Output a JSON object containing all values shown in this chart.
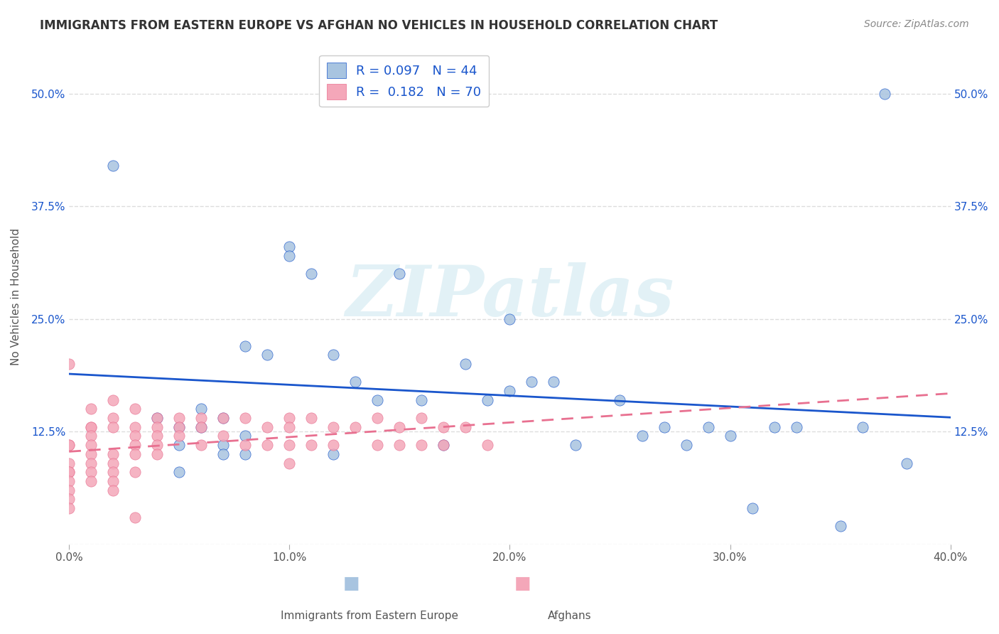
{
  "title": "IMMIGRANTS FROM EASTERN EUROPE VS AFGHAN NO VEHICLES IN HOUSEHOLD CORRELATION CHART",
  "source": "Source: ZipAtlas.com",
  "xlabel_bottom": "",
  "ylabel": "No Vehicles in Household",
  "legend_label1": "Immigrants from Eastern Europe",
  "legend_label2": "Afghans",
  "R1": 0.097,
  "N1": 44,
  "R2": 0.182,
  "N2": 70,
  "xlim": [
    0.0,
    0.4
  ],
  "ylim": [
    0.0,
    0.55
  ],
  "xticks": [
    0.0,
    0.1,
    0.2,
    0.3,
    0.4
  ],
  "yticks": [
    0.0,
    0.125,
    0.25,
    0.375,
    0.5
  ],
  "xticklabels": [
    "0.0%",
    "10.0%",
    "20.0%",
    "30.0%",
    "40.0%"
  ],
  "yticklabels": [
    "",
    "12.5%",
    "25.0%",
    "37.5%",
    "50.0%"
  ],
  "color_blue": "#a8c4e0",
  "color_pink": "#f4a7b9",
  "line_blue": "#1a56cc",
  "line_pink": "#e87090",
  "watermark": "ZIPatlas",
  "blue_x": [
    0.02,
    0.04,
    0.05,
    0.05,
    0.05,
    0.06,
    0.06,
    0.07,
    0.07,
    0.07,
    0.08,
    0.08,
    0.08,
    0.09,
    0.1,
    0.1,
    0.11,
    0.12,
    0.12,
    0.13,
    0.14,
    0.15,
    0.16,
    0.17,
    0.18,
    0.19,
    0.2,
    0.2,
    0.21,
    0.22,
    0.23,
    0.25,
    0.26,
    0.27,
    0.28,
    0.29,
    0.3,
    0.31,
    0.32,
    0.33,
    0.35,
    0.36,
    0.37,
    0.38
  ],
  "blue_y": [
    0.42,
    0.14,
    0.13,
    0.11,
    0.08,
    0.15,
    0.13,
    0.14,
    0.11,
    0.1,
    0.22,
    0.12,
    0.1,
    0.21,
    0.33,
    0.32,
    0.3,
    0.1,
    0.21,
    0.18,
    0.16,
    0.3,
    0.16,
    0.11,
    0.2,
    0.16,
    0.17,
    0.25,
    0.18,
    0.18,
    0.11,
    0.16,
    0.12,
    0.13,
    0.11,
    0.13,
    0.12,
    0.04,
    0.13,
    0.13,
    0.02,
    0.13,
    0.5,
    0.09
  ],
  "pink_x": [
    0.0,
    0.0,
    0.0,
    0.0,
    0.0,
    0.0,
    0.0,
    0.0,
    0.0,
    0.0,
    0.01,
    0.01,
    0.01,
    0.01,
    0.01,
    0.01,
    0.01,
    0.01,
    0.01,
    0.02,
    0.02,
    0.02,
    0.02,
    0.02,
    0.02,
    0.02,
    0.02,
    0.03,
    0.03,
    0.03,
    0.03,
    0.03,
    0.03,
    0.03,
    0.04,
    0.04,
    0.04,
    0.04,
    0.04,
    0.05,
    0.05,
    0.05,
    0.06,
    0.06,
    0.06,
    0.07,
    0.07,
    0.08,
    0.08,
    0.09,
    0.09,
    0.1,
    0.1,
    0.1,
    0.1,
    0.11,
    0.11,
    0.12,
    0.12,
    0.13,
    0.14,
    0.14,
    0.15,
    0.15,
    0.16,
    0.16,
    0.17,
    0.17,
    0.18,
    0.19
  ],
  "pink_y": [
    0.2,
    0.11,
    0.11,
    0.09,
    0.08,
    0.08,
    0.07,
    0.06,
    0.05,
    0.04,
    0.15,
    0.13,
    0.13,
    0.12,
    0.11,
    0.1,
    0.09,
    0.08,
    0.07,
    0.16,
    0.14,
    0.13,
    0.1,
    0.09,
    0.08,
    0.07,
    0.06,
    0.15,
    0.13,
    0.12,
    0.11,
    0.1,
    0.08,
    0.03,
    0.14,
    0.13,
    0.12,
    0.11,
    0.1,
    0.14,
    0.13,
    0.12,
    0.14,
    0.13,
    0.11,
    0.14,
    0.12,
    0.14,
    0.11,
    0.13,
    0.11,
    0.14,
    0.13,
    0.11,
    0.09,
    0.14,
    0.11,
    0.13,
    0.11,
    0.13,
    0.14,
    0.11,
    0.13,
    0.11,
    0.14,
    0.11,
    0.13,
    0.11,
    0.13,
    0.11
  ],
  "background_color": "#ffffff",
  "grid_color": "#dddddd"
}
